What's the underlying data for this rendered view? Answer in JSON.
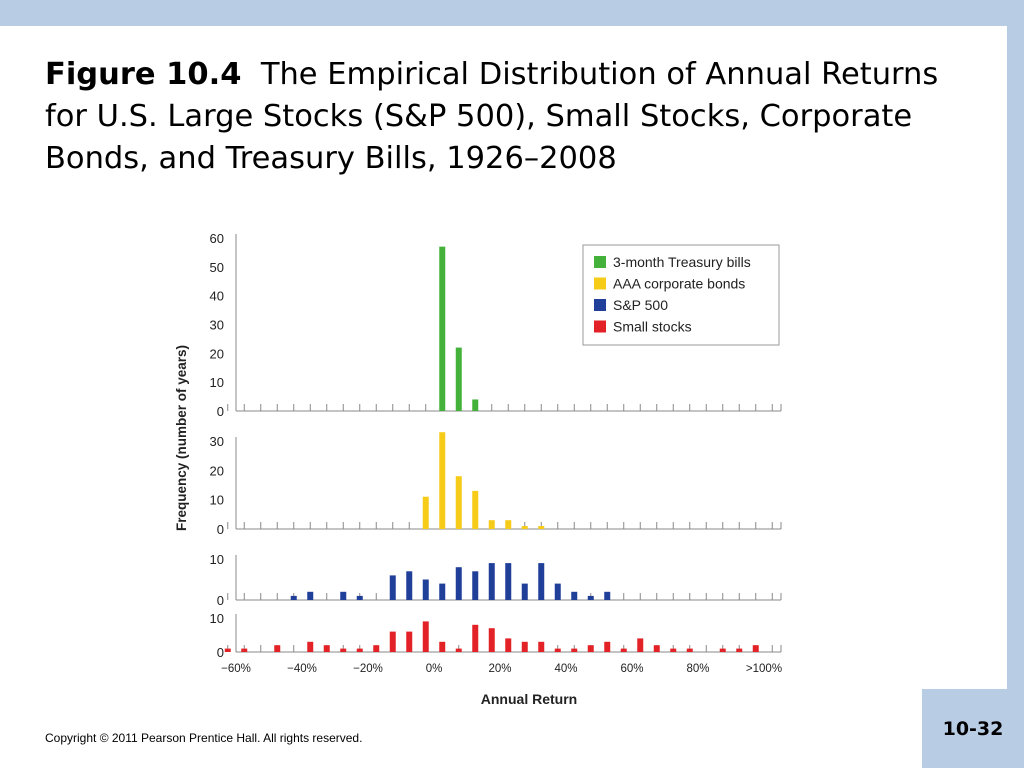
{
  "title": {
    "label": "Figure 10.4",
    "text": "The Empirical Distribution of Annual Returns for U.S. Large Stocks (S&P 500), Small Stocks, Corporate Bonds, and Treasury Bills, 1926–2008"
  },
  "copyright": "Copyright © 2011 Pearson Prentice Hall. All rights reserved.",
  "slide_number": "10-32",
  "colors": {
    "band": "#b8cce4",
    "treasury": "#44b23a",
    "corporate": "#f6cc18",
    "sp500": "#203f99",
    "small": "#e32227",
    "axis": "#888888"
  },
  "chart_data": {
    "type": "bar",
    "xlabel": "Annual Return",
    "ylabel": "Frequency (number of years)",
    "x_tick_labels": [
      "−60%",
      "−40%",
      "−20%",
      "0%",
      "20%",
      "40%",
      "60%",
      "80%",
      ">100%"
    ],
    "bin_width_pct": 5,
    "bins": [
      -65,
      -60,
      -55,
      -50,
      -45,
      -40,
      -35,
      -30,
      -25,
      -20,
      -15,
      -10,
      -5,
      0,
      5,
      10,
      15,
      20,
      25,
      30,
      35,
      40,
      45,
      50,
      55,
      60,
      65,
      70,
      75,
      80,
      85,
      90,
      95,
      100
    ],
    "legend": [
      "3-month Treasury bills",
      "AAA corporate bonds",
      "S&P 500",
      "Small stocks"
    ],
    "legend_position": "top-right",
    "panels": [
      {
        "name": "3-month Treasury bills",
        "color_key": "treasury",
        "ylim": [
          0,
          60
        ],
        "yticks": [
          0,
          10,
          20,
          30,
          40,
          50,
          60
        ],
        "values": [
          0,
          0,
          0,
          0,
          0,
          0,
          0,
          0,
          0,
          0,
          0,
          0,
          0,
          57,
          22,
          4,
          0,
          0,
          0,
          0,
          0,
          0,
          0,
          0,
          0,
          0,
          0,
          0,
          0,
          0,
          0,
          0,
          0,
          0
        ]
      },
      {
        "name": "AAA corporate bonds",
        "color_key": "corporate",
        "ylim": [
          0,
          30
        ],
        "yticks": [
          0,
          10,
          20,
          30
        ],
        "values": [
          0,
          0,
          0,
          0,
          0,
          0,
          0,
          0,
          0,
          0,
          0,
          0,
          11,
          33,
          18,
          13,
          3,
          3,
          1,
          1,
          0,
          0,
          0,
          0,
          0,
          0,
          0,
          0,
          0,
          0,
          0,
          0,
          0,
          0
        ]
      },
      {
        "name": "S&P 500",
        "color_key": "sp500",
        "ylim": [
          0,
          10
        ],
        "yticks": [
          0,
          10
        ],
        "values": [
          0,
          0,
          0,
          0,
          1,
          2,
          0,
          2,
          1,
          0,
          6,
          7,
          5,
          4,
          8,
          7,
          9,
          9,
          4,
          9,
          4,
          2,
          1,
          2,
          0,
          0,
          0,
          0,
          0,
          0,
          0,
          0,
          0,
          0
        ]
      },
      {
        "name": "Small stocks",
        "color_key": "small",
        "ylim": [
          0,
          10
        ],
        "yticks": [
          0,
          10
        ],
        "values": [
          1,
          1,
          0,
          2,
          0,
          3,
          2,
          1,
          1,
          2,
          6,
          6,
          9,
          3,
          1,
          8,
          7,
          4,
          3,
          3,
          1,
          1,
          2,
          3,
          1,
          4,
          2,
          1,
          1,
          0,
          1,
          1,
          2,
          0
        ]
      }
    ]
  }
}
